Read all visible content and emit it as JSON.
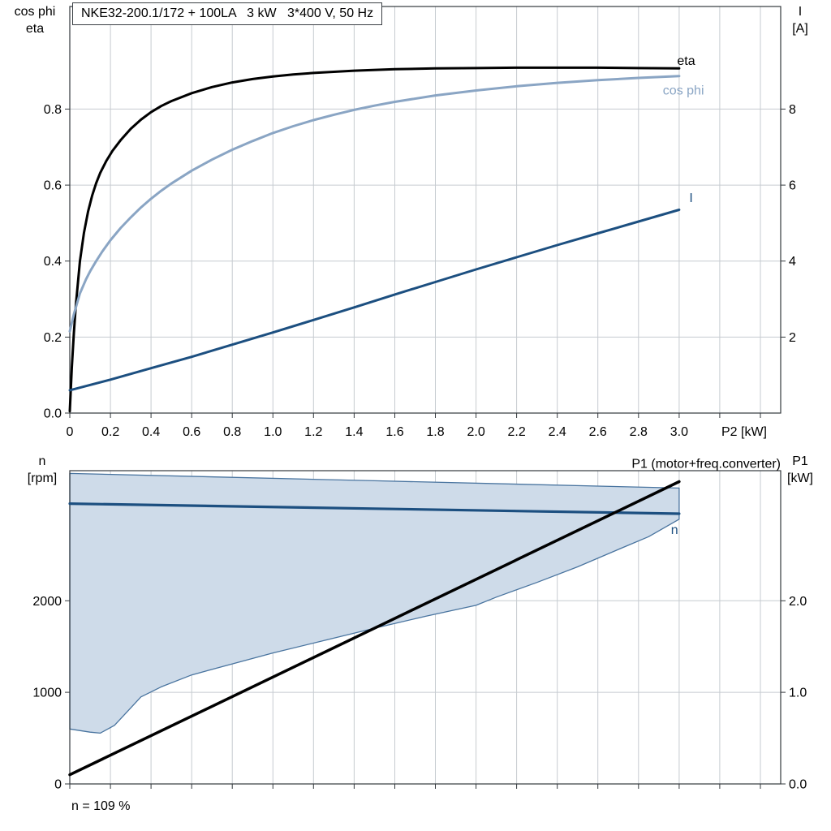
{
  "header": {
    "title": "NKE32-200.1/172 + 100LA   3 kW   3*400 V, 50 Hz"
  },
  "colors": {
    "grid": "#c6cbd0",
    "frame": "#33383d",
    "eta": "#000000",
    "cos_phi": "#8aa5c4",
    "current": "#1c4f80",
    "speed": "#1c4f80",
    "p1": "#000000",
    "area_fill": "#cedbe9",
    "area_stroke": "#49749f"
  },
  "chart_data": [
    {
      "type": "line",
      "title": "NKE32-200.1/172 + 100LA   3 kW   3*400 V, 50 Hz",
      "xlabel": "P2 [kW]",
      "left_axis": {
        "label_lines": [
          "cos phi",
          "eta"
        ],
        "lim": [
          0,
          1.07
        ],
        "ticks": [
          [
            0,
            "0.0"
          ],
          [
            0.2,
            "0.2"
          ],
          [
            0.4,
            "0.4"
          ],
          [
            0.6,
            "0.6"
          ],
          [
            0.8,
            "0.8"
          ]
        ]
      },
      "right_axis": {
        "label_lines": [
          "I",
          "[A]"
        ],
        "lim": [
          0,
          10.7
        ],
        "ticks": [
          [
            2,
            "2"
          ],
          [
            4,
            "4"
          ],
          [
            6,
            "6"
          ],
          [
            8,
            "8"
          ]
        ]
      },
      "x_axis": {
        "lim": [
          0,
          3.5
        ],
        "ticks": [
          [
            0,
            "0"
          ],
          [
            0.2,
            "0.2"
          ],
          [
            0.4,
            "0.4"
          ],
          [
            0.6,
            "0.6"
          ],
          [
            0.8,
            "0.8"
          ],
          [
            1,
            "1.0"
          ],
          [
            1.2,
            "1.2"
          ],
          [
            1.4,
            "1.4"
          ],
          [
            1.6,
            "1.6"
          ],
          [
            1.8,
            "1.8"
          ],
          [
            2,
            "2.0"
          ],
          [
            2.2,
            "2.2"
          ],
          [
            2.4,
            "2.4"
          ],
          [
            2.6,
            "2.6"
          ],
          [
            2.8,
            "2.8"
          ],
          [
            3,
            "3.0"
          ],
          [
            3.2,
            ""
          ],
          [
            3.4,
            ""
          ]
        ]
      },
      "series": [
        {
          "name": "eta",
          "axis": "left",
          "color": "#000000",
          "width": 3,
          "label": "eta",
          "label_at": [
            2.99,
            0.916
          ],
          "label_anchor": "start",
          "label_color": "#000000",
          "points": [
            [
              0,
              0.005
            ],
            [
              0.01,
              0.12
            ],
            [
              0.02,
              0.21
            ],
            [
              0.03,
              0.285
            ],
            [
              0.05,
              0.4
            ],
            [
              0.07,
              0.475
            ],
            [
              0.09,
              0.53
            ],
            [
              0.11,
              0.572
            ],
            [
              0.13,
              0.605
            ],
            [
              0.15,
              0.632
            ],
            [
              0.18,
              0.664
            ],
            [
              0.21,
              0.69
            ],
            [
              0.25,
              0.718
            ],
            [
              0.3,
              0.748
            ],
            [
              0.35,
              0.772
            ],
            [
              0.4,
              0.792
            ],
            [
              0.45,
              0.808
            ],
            [
              0.5,
              0.821
            ],
            [
              0.6,
              0.842
            ],
            [
              0.7,
              0.858
            ],
            [
              0.8,
              0.87
            ],
            [
              0.9,
              0.879
            ],
            [
              1,
              0.886
            ],
            [
              1.1,
              0.891
            ],
            [
              1.2,
              0.895
            ],
            [
              1.4,
              0.901
            ],
            [
              1.6,
              0.905
            ],
            [
              1.8,
              0.907
            ],
            [
              2,
              0.908
            ],
            [
              2.2,
              0.909
            ],
            [
              2.4,
              0.909
            ],
            [
              2.6,
              0.909
            ],
            [
              2.8,
              0.908
            ],
            [
              3,
              0.907
            ]
          ]
        },
        {
          "name": "cos-phi",
          "axis": "left",
          "color": "#8aa5c4",
          "width": 3,
          "label": "cos phi",
          "label_at": [
            2.92,
            0.838
          ],
          "label_anchor": "start",
          "label_color": "#8aa5c4",
          "points": [
            [
              0,
              0.215
            ],
            [
              0.02,
              0.26
            ],
            [
              0.05,
              0.315
            ],
            [
              0.08,
              0.352
            ],
            [
              0.1,
              0.373
            ],
            [
              0.13,
              0.4
            ],
            [
              0.16,
              0.425
            ],
            [
              0.2,
              0.455
            ],
            [
              0.25,
              0.487
            ],
            [
              0.3,
              0.515
            ],
            [
              0.35,
              0.541
            ],
            [
              0.4,
              0.564
            ],
            [
              0.45,
              0.585
            ],
            [
              0.5,
              0.604
            ],
            [
              0.6,
              0.638
            ],
            [
              0.7,
              0.667
            ],
            [
              0.8,
              0.693
            ],
            [
              0.9,
              0.716
            ],
            [
              1,
              0.737
            ],
            [
              1.1,
              0.755
            ],
            [
              1.2,
              0.771
            ],
            [
              1.3,
              0.785
            ],
            [
              1.4,
              0.798
            ],
            [
              1.5,
              0.809
            ],
            [
              1.6,
              0.819
            ],
            [
              1.8,
              0.836
            ],
            [
              2,
              0.849
            ],
            [
              2.2,
              0.86
            ],
            [
              2.4,
              0.869
            ],
            [
              2.6,
              0.876
            ],
            [
              2.8,
              0.882
            ],
            [
              3,
              0.887
            ]
          ]
        },
        {
          "name": "current",
          "axis": "right",
          "color": "#1c4f80",
          "width": 3,
          "label": "I",
          "label_at": [
            3.05,
            5.55
          ],
          "label_anchor": "start",
          "label_color": "#1c4f80",
          "points": [
            [
              0,
              0.6
            ],
            [
              0.2,
              0.88
            ],
            [
              0.4,
              1.18
            ],
            [
              0.6,
              1.48
            ],
            [
              0.8,
              1.8
            ],
            [
              1,
              2.12
            ],
            [
              1.2,
              2.45
            ],
            [
              1.4,
              2.78
            ],
            [
              1.6,
              3.12
            ],
            [
              1.8,
              3.45
            ],
            [
              2,
              3.78
            ],
            [
              2.2,
              4.1
            ],
            [
              2.4,
              4.42
            ],
            [
              2.6,
              4.73
            ],
            [
              2.8,
              5.04
            ],
            [
              3,
              5.35
            ]
          ]
        }
      ]
    },
    {
      "type": "line+area",
      "footnote": "n = 109 %",
      "xlabel": "",
      "left_axis": {
        "label_lines": [
          "n",
          "[rpm]"
        ],
        "lim": [
          0,
          3420
        ],
        "ticks": [
          [
            0,
            "0"
          ],
          [
            1000,
            "1000"
          ],
          [
            2000,
            "2000"
          ]
        ]
      },
      "right_axis": {
        "label_lines": [
          "P1",
          "[kW]"
        ],
        "lim": [
          0,
          3.42
        ],
        "ticks": [
          [
            0,
            "0.0"
          ],
          [
            1,
            "1.0"
          ],
          [
            2,
            "2.0"
          ]
        ]
      },
      "x_axis": {
        "lim": [
          0,
          3.5
        ],
        "ticks": [
          [
            0,
            ""
          ],
          [
            0.2,
            ""
          ],
          [
            0.4,
            ""
          ],
          [
            0.6,
            ""
          ],
          [
            0.8,
            ""
          ],
          [
            1,
            ""
          ],
          [
            1.2,
            ""
          ],
          [
            1.4,
            ""
          ],
          [
            1.6,
            ""
          ],
          [
            1.8,
            ""
          ],
          [
            2,
            ""
          ],
          [
            2.2,
            ""
          ],
          [
            2.4,
            ""
          ],
          [
            2.6,
            ""
          ],
          [
            2.8,
            ""
          ],
          [
            3,
            ""
          ],
          [
            3.2,
            ""
          ],
          [
            3.4,
            ""
          ]
        ]
      },
      "area": {
        "name": "speed-control-range",
        "fill": "#cedbe9",
        "stroke": "#49749f",
        "upper": [
          [
            0,
            3390
          ],
          [
            1.5,
            3310
          ],
          [
            3,
            3230
          ]
        ],
        "lower": [
          [
            0,
            600
          ],
          [
            0.1,
            565
          ],
          [
            0.15,
            555
          ],
          [
            0.22,
            640
          ],
          [
            0.3,
            830
          ],
          [
            0.35,
            950
          ],
          [
            0.45,
            1060
          ],
          [
            0.6,
            1190
          ],
          [
            0.8,
            1310
          ],
          [
            1,
            1430
          ],
          [
            1.25,
            1565
          ],
          [
            1.5,
            1700
          ],
          [
            1.75,
            1830
          ],
          [
            2,
            1950
          ],
          [
            2.1,
            2040
          ],
          [
            2.3,
            2200
          ],
          [
            2.5,
            2370
          ],
          [
            2.7,
            2560
          ],
          [
            2.85,
            2700
          ],
          [
            3,
            2890
          ]
        ]
      },
      "series": [
        {
          "name": "speed",
          "axis": "left",
          "color": "#1c4f80",
          "width": 3.2,
          "label": "n",
          "label_at": [
            2.96,
            2730
          ],
          "label_anchor": "start",
          "label_color": "#1c4f80",
          "points": [
            [
              0,
              3060
            ],
            [
              1.5,
              3005
            ],
            [
              3,
              2950
            ]
          ]
        },
        {
          "name": "p1",
          "axis": "right",
          "color": "#000000",
          "width": 3.5,
          "label": "P1 (motor+freq.converter)",
          "label_at": [
            3.5,
            3.45
          ],
          "label_anchor": "end",
          "label_color": "#000000",
          "points": [
            [
              0,
              0.1
            ],
            [
              3,
              3.3
            ]
          ]
        }
      ]
    }
  ]
}
